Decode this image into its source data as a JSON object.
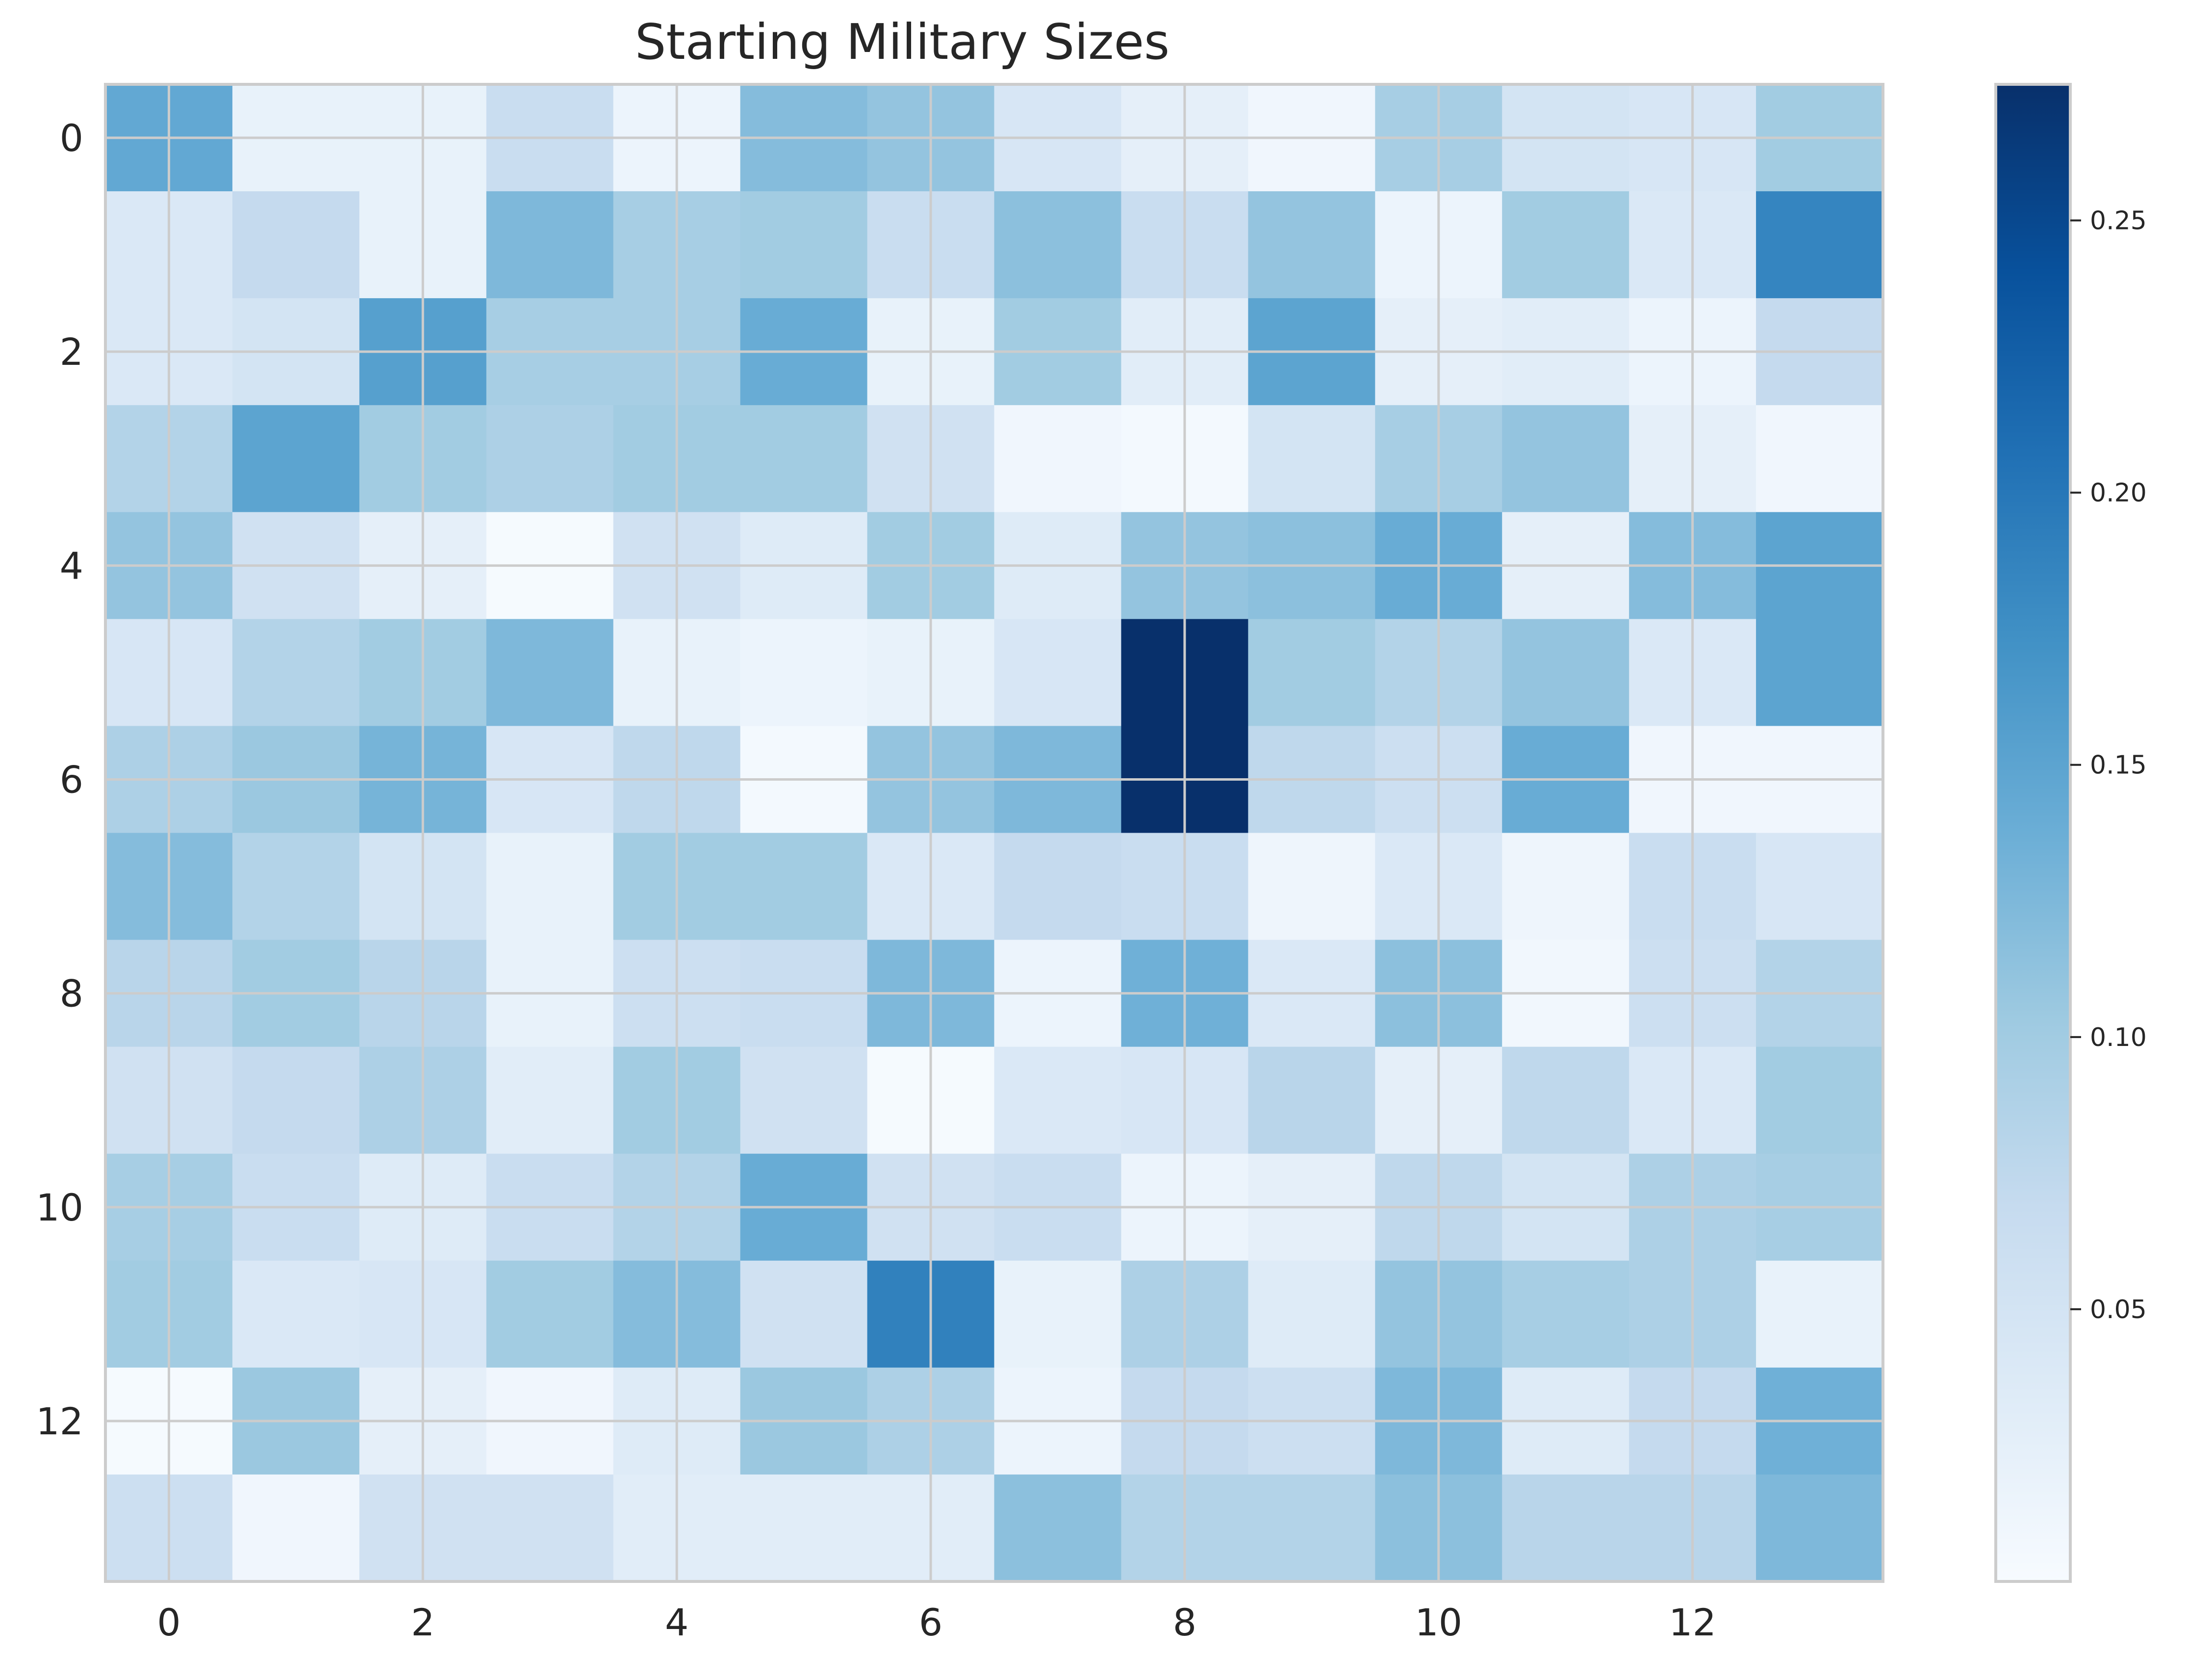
{
  "chart_data": {
    "type": "heatmap",
    "title": "Starting Military Sizes",
    "xlabel": "",
    "ylabel": "",
    "colormap": "Blues",
    "x_ticks": [
      0,
      2,
      4,
      6,
      8,
      10,
      12
    ],
    "y_ticks": [
      0,
      2,
      4,
      6,
      8,
      10,
      12
    ],
    "colorbar": {
      "range": [
        0.0,
        0.275
      ],
      "ticks": [
        0.05,
        0.1,
        0.15,
        0.2,
        0.25
      ],
      "tick_labels": [
        "0.05",
        "0.10",
        "0.15",
        "0.20",
        "0.25"
      ]
    },
    "grid": true,
    "values": [
      [
        0.145,
        0.02,
        0.02,
        0.065,
        0.015,
        0.12,
        0.11,
        0.045,
        0.025,
        0.01,
        0.095,
        0.05,
        0.045,
        0.1
      ],
      [
        0.04,
        0.07,
        0.02,
        0.125,
        0.095,
        0.1,
        0.065,
        0.115,
        0.065,
        0.11,
        0.015,
        0.1,
        0.04,
        0.185
      ],
      [
        0.04,
        0.05,
        0.155,
        0.095,
        0.095,
        0.14,
        0.02,
        0.1,
        0.03,
        0.15,
        0.025,
        0.03,
        0.015,
        0.07
      ],
      [
        0.085,
        0.15,
        0.1,
        0.09,
        0.1,
        0.1,
        0.055,
        0.01,
        0.005,
        0.05,
        0.095,
        0.11,
        0.025,
        0.01
      ],
      [
        0.11,
        0.055,
        0.025,
        0.003,
        0.055,
        0.035,
        0.1,
        0.035,
        0.11,
        0.115,
        0.14,
        0.025,
        0.12,
        0.15
      ],
      [
        0.045,
        0.085,
        0.1,
        0.125,
        0.02,
        0.015,
        0.02,
        0.045,
        0.275,
        0.1,
        0.085,
        0.11,
        0.04,
        0.15
      ],
      [
        0.09,
        0.105,
        0.13,
        0.045,
        0.075,
        0.005,
        0.11,
        0.125,
        0.275,
        0.075,
        0.06,
        0.14,
        0.01,
        0.01
      ],
      [
        0.12,
        0.085,
        0.05,
        0.02,
        0.1,
        0.1,
        0.04,
        0.07,
        0.065,
        0.012,
        0.04,
        0.012,
        0.065,
        0.045
      ],
      [
        0.08,
        0.1,
        0.08,
        0.02,
        0.06,
        0.065,
        0.125,
        0.015,
        0.135,
        0.04,
        0.115,
        0.008,
        0.06,
        0.085
      ],
      [
        0.055,
        0.07,
        0.09,
        0.03,
        0.1,
        0.055,
        0.003,
        0.04,
        0.045,
        0.08,
        0.025,
        0.075,
        0.04,
        0.1
      ],
      [
        0.095,
        0.065,
        0.035,
        0.065,
        0.085,
        0.14,
        0.055,
        0.065,
        0.015,
        0.025,
        0.075,
        0.05,
        0.09,
        0.095
      ],
      [
        0.1,
        0.04,
        0.045,
        0.1,
        0.12,
        0.055,
        0.19,
        0.02,
        0.09,
        0.035,
        0.11,
        0.095,
        0.09,
        0.02
      ],
      [
        0.003,
        0.105,
        0.025,
        0.01,
        0.035,
        0.105,
        0.09,
        0.015,
        0.07,
        0.06,
        0.125,
        0.035,
        0.07,
        0.135
      ],
      [
        0.06,
        0.01,
        0.055,
        0.055,
        0.03,
        0.03,
        0.03,
        0.115,
        0.085,
        0.085,
        0.115,
        0.08,
        0.08,
        0.125
      ]
    ]
  }
}
